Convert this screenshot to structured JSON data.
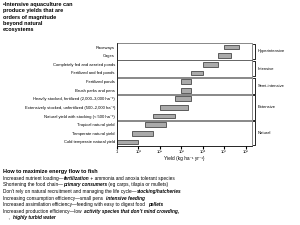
{
  "chart_data": {
    "type": "bar",
    "orientation": "horizontal",
    "title": "•Intensive aquaculture can\nproduce yields that are\norders of magnitude\nbeyond natural\necosystems",
    "categories": [
      "Raceways",
      "Cages",
      "Completely fed and aerated ponds",
      "Fertilized and fed ponds",
      "Fertilized ponds",
      "Brush parks and pens",
      "Heavily stocked, fertilized (2,000–3,000 ha⁻¹)",
      "Extensively stocked, unfertilized (500–2,000 ha⁻¹)",
      "Natural yield with stocking (< 500 ha⁻¹)",
      "Tropical natural yield",
      "Temperate natural yield",
      "Cold temperate natural yield"
    ],
    "starts": [
      100000,
      50000,
      10000,
      3000,
      1000,
      1000,
      500,
      100,
      50,
      20,
      5,
      1
    ],
    "ends": [
      500000,
      200000,
      50000,
      10000,
      3000,
      3000,
      3000,
      2000,
      500,
      200,
      50,
      10
    ],
    "color": "#aaaaaa",
    "xlabel": "Yield (kg ha⁻¹ yr⁻¹)",
    "log": "x",
    "xlim": [
      1,
      2000000
    ],
    "xticks": [
      1,
      {
        "value": 10,
        "label": "10¹"
      },
      {
        "value": 100,
        "label": "10²"
      },
      {
        "value": 1000,
        "label": "10³"
      },
      {
        "value": 10000,
        "label": "10⁴"
      },
      {
        "value": 100000,
        "label": "10⁵"
      },
      {
        "value": 1000000,
        "label": "10⁶"
      }
    ],
    "grid": false,
    "groups": [
      {
        "name": "Hyperintensive",
        "categories": [
          "Raceways",
          "Cages"
        ]
      },
      {
        "name": "Intensive",
        "categories": [
          "Completely fed and aerated ponds",
          "Fertilized and fed ponds"
        ]
      },
      {
        "name": "Semi-intensive",
        "categories": [
          "Fertilized ponds",
          "Brush parks and pens"
        ]
      },
      {
        "name": "Extensive",
        "categories": [
          "Heavily stocked, fertilized (2,000–3,000 ha⁻¹)",
          "Extensively stocked, unfertilized (500–2,000 ha⁻¹)",
          "Natural yield with stocking (< 500 ha⁻¹)"
        ]
      },
      {
        "name": "Natural",
        "categories": [
          "Tropical natural yield",
          "Temperate natural yield",
          "Cold temperate natural yield"
        ]
      }
    ],
    "notes_title": "How to maximize energy flow to fish",
    "notes": [
      [
        "Increased nutrient loading—",
        "fertilization",
        " + ammonia and anoxia tolerant species"
      ],
      [
        "Shortening the food chain—",
        "primary consumers",
        " (eg carps, tilapia or mullets)"
      ],
      [
        "Don’t rely on natural recruitment and managing the life cycle—",
        "stocking/hatcheries"
      ],
      [
        "Increasing consumption efficiency—small pens ",
        "intensive feeding"
      ],
      [
        "Increased assimilation efficiency—feeding with easy to digest food ",
        "pellets"
      ],
      [
        "Increased production efficiency—low ",
        "activity species that don’t mind crowding,"
      ],
      [
        "    , ",
        "highly turbid water"
      ]
    ]
  }
}
